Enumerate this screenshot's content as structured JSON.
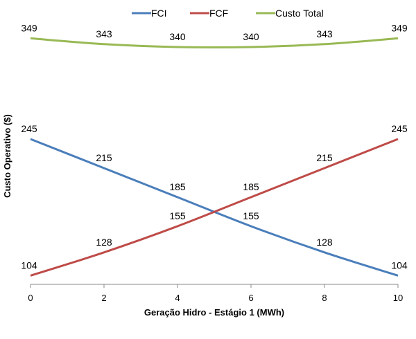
{
  "chart_data": {
    "type": "line",
    "title": "",
    "xlabel": "Geração Hidro - Estágio 1 (MWh)",
    "ylabel": "Custo Operativo ($)",
    "x_ticks": [
      0,
      2,
      4,
      6,
      8,
      10
    ],
    "xlim": [
      0,
      10
    ],
    "ylim": [
      95,
      360
    ],
    "grid": false,
    "legend_position": "top",
    "series": [
      {
        "name": "FCI",
        "color": "#4a7ebb",
        "points": [
          [
            0,
            245
          ],
          [
            2,
            215
          ],
          [
            4,
            185
          ],
          [
            6,
            155
          ],
          [
            8,
            128
          ],
          [
            10,
            104
          ]
        ],
        "labels": [
          {
            "x": 0,
            "y": 245,
            "text": "245"
          },
          {
            "x": 2,
            "y": 215,
            "text": "215"
          },
          {
            "x": 4,
            "y": 185,
            "text": "185"
          },
          {
            "x": 6,
            "y": 155,
            "text": "155"
          },
          {
            "x": 8,
            "y": 128,
            "text": "128"
          },
          {
            "x": 10,
            "y": 104,
            "text": "104"
          }
        ]
      },
      {
        "name": "FCF",
        "color": "#be4b48",
        "points": [
          [
            0,
            104
          ],
          [
            2,
            128
          ],
          [
            4,
            155
          ],
          [
            6,
            185
          ],
          [
            8,
            215
          ],
          [
            10,
            245
          ]
        ],
        "labels": [
          {
            "x": 0,
            "y": 104,
            "text": "104"
          },
          {
            "x": 2,
            "y": 128,
            "text": "128"
          },
          {
            "x": 4,
            "y": 155,
            "text": "155"
          },
          {
            "x": 6,
            "y": 185,
            "text": "185"
          },
          {
            "x": 8,
            "y": 215,
            "text": "215"
          },
          {
            "x": 10,
            "y": 245,
            "text": "245"
          }
        ]
      },
      {
        "name": "Custo Total",
        "color": "#98b954",
        "points": [
          [
            0,
            349
          ],
          [
            2,
            343
          ],
          [
            4,
            340
          ],
          [
            6,
            340
          ],
          [
            8,
            343
          ],
          [
            10,
            349
          ]
        ],
        "labels": [
          {
            "x": 0,
            "y": 349,
            "text": "349"
          },
          {
            "x": 2,
            "y": 343,
            "text": "343"
          },
          {
            "x": 4,
            "y": 340,
            "text": "340"
          },
          {
            "x": 6,
            "y": 340,
            "text": "340"
          },
          {
            "x": 8,
            "y": 343,
            "text": "343"
          },
          {
            "x": 10,
            "y": 349,
            "text": "349"
          }
        ]
      }
    ]
  }
}
